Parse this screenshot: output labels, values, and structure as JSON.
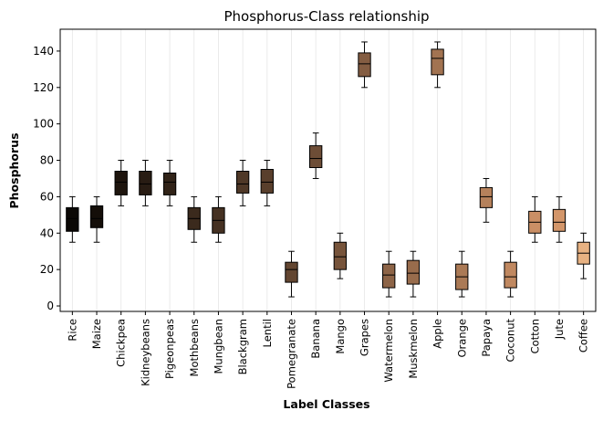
{
  "chart_data": {
    "type": "box",
    "title": "Phosphorus-Class relationship",
    "xlabel": "Label Classes",
    "ylabel": "Phosphorus",
    "ylim": [
      -3,
      152
    ],
    "yticks": [
      0,
      20,
      40,
      60,
      80,
      100,
      120,
      140
    ],
    "grid": "vertical",
    "categories": [
      "Rice",
      "Maize",
      "Chickpea",
      "Kidneybeans",
      "Pigeonpeas",
      "Mothbeans",
      "Mungbean",
      "Blackgram",
      "Lentil",
      "Pomegranate",
      "Banana",
      "Mango",
      "Grapes",
      "Watermelon",
      "Muskmelon",
      "Apple",
      "Orange",
      "Papaya",
      "Coconut",
      "Cotton",
      "Jute",
      "Coffee"
    ],
    "boxes": [
      {
        "whislo": 35,
        "q1": 41,
        "med": 48,
        "q3": 54,
        "whishi": 60,
        "color": "#0b0805"
      },
      {
        "whislo": 35,
        "q1": 43,
        "med": 48,
        "q3": 55,
        "whishi": 60,
        "color": "#140e09"
      },
      {
        "whislo": 55,
        "q1": 61,
        "med": 68,
        "q3": 74,
        "whishi": 80,
        "color": "#1e150e"
      },
      {
        "whislo": 55,
        "q1": 61,
        "med": 67,
        "q3": 74,
        "whishi": 80,
        "color": "#281c13"
      },
      {
        "whislo": 55,
        "q1": 61,
        "med": 68,
        "q3": 73,
        "whishi": 80,
        "color": "#312318"
      },
      {
        "whislo": 35,
        "q1": 42,
        "med": 48,
        "q3": 54,
        "whishi": 60,
        "color": "#3b2a1d"
      },
      {
        "whislo": 35,
        "q1": 40,
        "med": 47,
        "q3": 54,
        "whishi": 60,
        "color": "#453122"
      },
      {
        "whislo": 55,
        "q1": 62,
        "med": 67,
        "q3": 74,
        "whishi": 80,
        "color": "#4f3827"
      },
      {
        "whislo": 55,
        "q1": 62,
        "med": 68,
        "q3": 75,
        "whishi": 80,
        "color": "#593f2c"
      },
      {
        "whislo": 5,
        "q1": 13,
        "med": 20,
        "q3": 24,
        "whishi": 30,
        "color": "#634631"
      },
      {
        "whislo": 70,
        "q1": 76,
        "med": 81,
        "q3": 88,
        "whishi": 95,
        "color": "#6d4d36"
      },
      {
        "whislo": 15,
        "q1": 20,
        "med": 27,
        "q3": 35,
        "whishi": 40,
        "color": "#77543b"
      },
      {
        "whislo": 120,
        "q1": 126,
        "med": 133,
        "q3": 139,
        "whishi": 145,
        "color": "#845d42"
      },
      {
        "whislo": 5,
        "q1": 10,
        "med": 17,
        "q3": 23,
        "whishi": 30,
        "color": "#8d6447"
      },
      {
        "whislo": 5,
        "q1": 12,
        "med": 18,
        "q3": 25,
        "whishi": 30,
        "color": "#986c4c"
      },
      {
        "whislo": 120,
        "q1": 127,
        "med": 136,
        "q3": 141,
        "whishi": 145,
        "color": "#a27351"
      },
      {
        "whislo": 5,
        "q1": 9,
        "med": 16,
        "q3": 23,
        "whishi": 30,
        "color": "#ab7a56"
      },
      {
        "whislo": 46,
        "q1": 54,
        "med": 60,
        "q3": 65,
        "whishi": 70,
        "color": "#b5815b"
      },
      {
        "whislo": 5,
        "q1": 10,
        "med": 16,
        "q3": 24,
        "whishi": 30,
        "color": "#c08860"
      },
      {
        "whislo": 35,
        "q1": 40,
        "med": 46,
        "q3": 52,
        "whishi": 60,
        "color": "#ca8f65"
      },
      {
        "whislo": 35,
        "q1": 41,
        "med": 46,
        "q3": 53,
        "whishi": 60,
        "color": "#d3966a"
      },
      {
        "whislo": 15,
        "q1": 23,
        "med": 29,
        "q3": 35,
        "whishi": 40,
        "color": "#e8b282"
      }
    ]
  }
}
